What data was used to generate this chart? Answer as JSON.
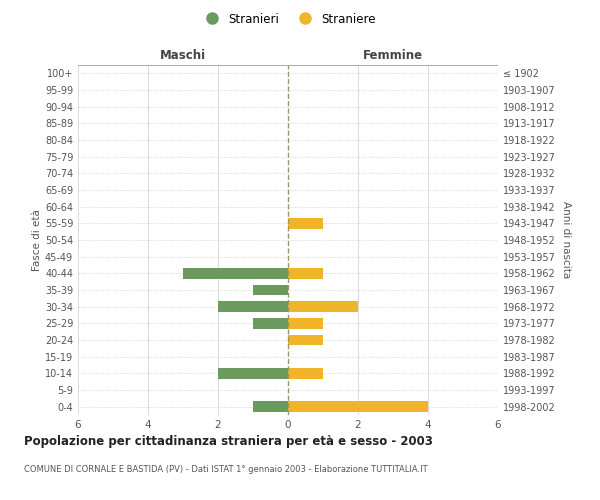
{
  "age_groups": [
    "0-4",
    "5-9",
    "10-14",
    "15-19",
    "20-24",
    "25-29",
    "30-34",
    "35-39",
    "40-44",
    "45-49",
    "50-54",
    "55-59",
    "60-64",
    "65-69",
    "70-74",
    "75-79",
    "80-84",
    "85-89",
    "90-94",
    "95-99",
    "100+"
  ],
  "birth_years": [
    "1998-2002",
    "1993-1997",
    "1988-1992",
    "1983-1987",
    "1978-1982",
    "1973-1977",
    "1968-1972",
    "1963-1967",
    "1958-1962",
    "1953-1957",
    "1948-1952",
    "1943-1947",
    "1938-1942",
    "1933-1937",
    "1928-1932",
    "1923-1927",
    "1918-1922",
    "1913-1917",
    "1908-1912",
    "1903-1907",
    "≤ 1902"
  ],
  "males": [
    1,
    0,
    2,
    0,
    0,
    1,
    2,
    1,
    3,
    0,
    0,
    0,
    0,
    0,
    0,
    0,
    0,
    0,
    0,
    0,
    0
  ],
  "females": [
    4,
    0,
    1,
    0,
    1,
    1,
    2,
    0,
    1,
    0,
    0,
    1,
    0,
    0,
    0,
    0,
    0,
    0,
    0,
    0,
    0
  ],
  "male_color": "#6b9a5e",
  "female_color": "#f0b429",
  "xlim": 6,
  "title": "Popolazione per cittadinanza straniera per età e sesso - 2003",
  "subtitle": "COMUNE DI CORNALE E BASTIDA (PV) - Dati ISTAT 1° gennaio 2003 - Elaborazione TUTTITALIA.IT",
  "ylabel_left": "Fasce di età",
  "ylabel_right": "Anni di nascita",
  "xlabel_left": "Maschi",
  "xlabel_right": "Femmine",
  "legend_male": "Stranieri",
  "legend_female": "Straniere",
  "background_color": "#ffffff",
  "grid_color": "#cccccc",
  "dot_grid_color": "#cccccc",
  "axis_line_color": "#aaaaaa",
  "dashed_line_color": "#999966",
  "text_color": "#555555"
}
